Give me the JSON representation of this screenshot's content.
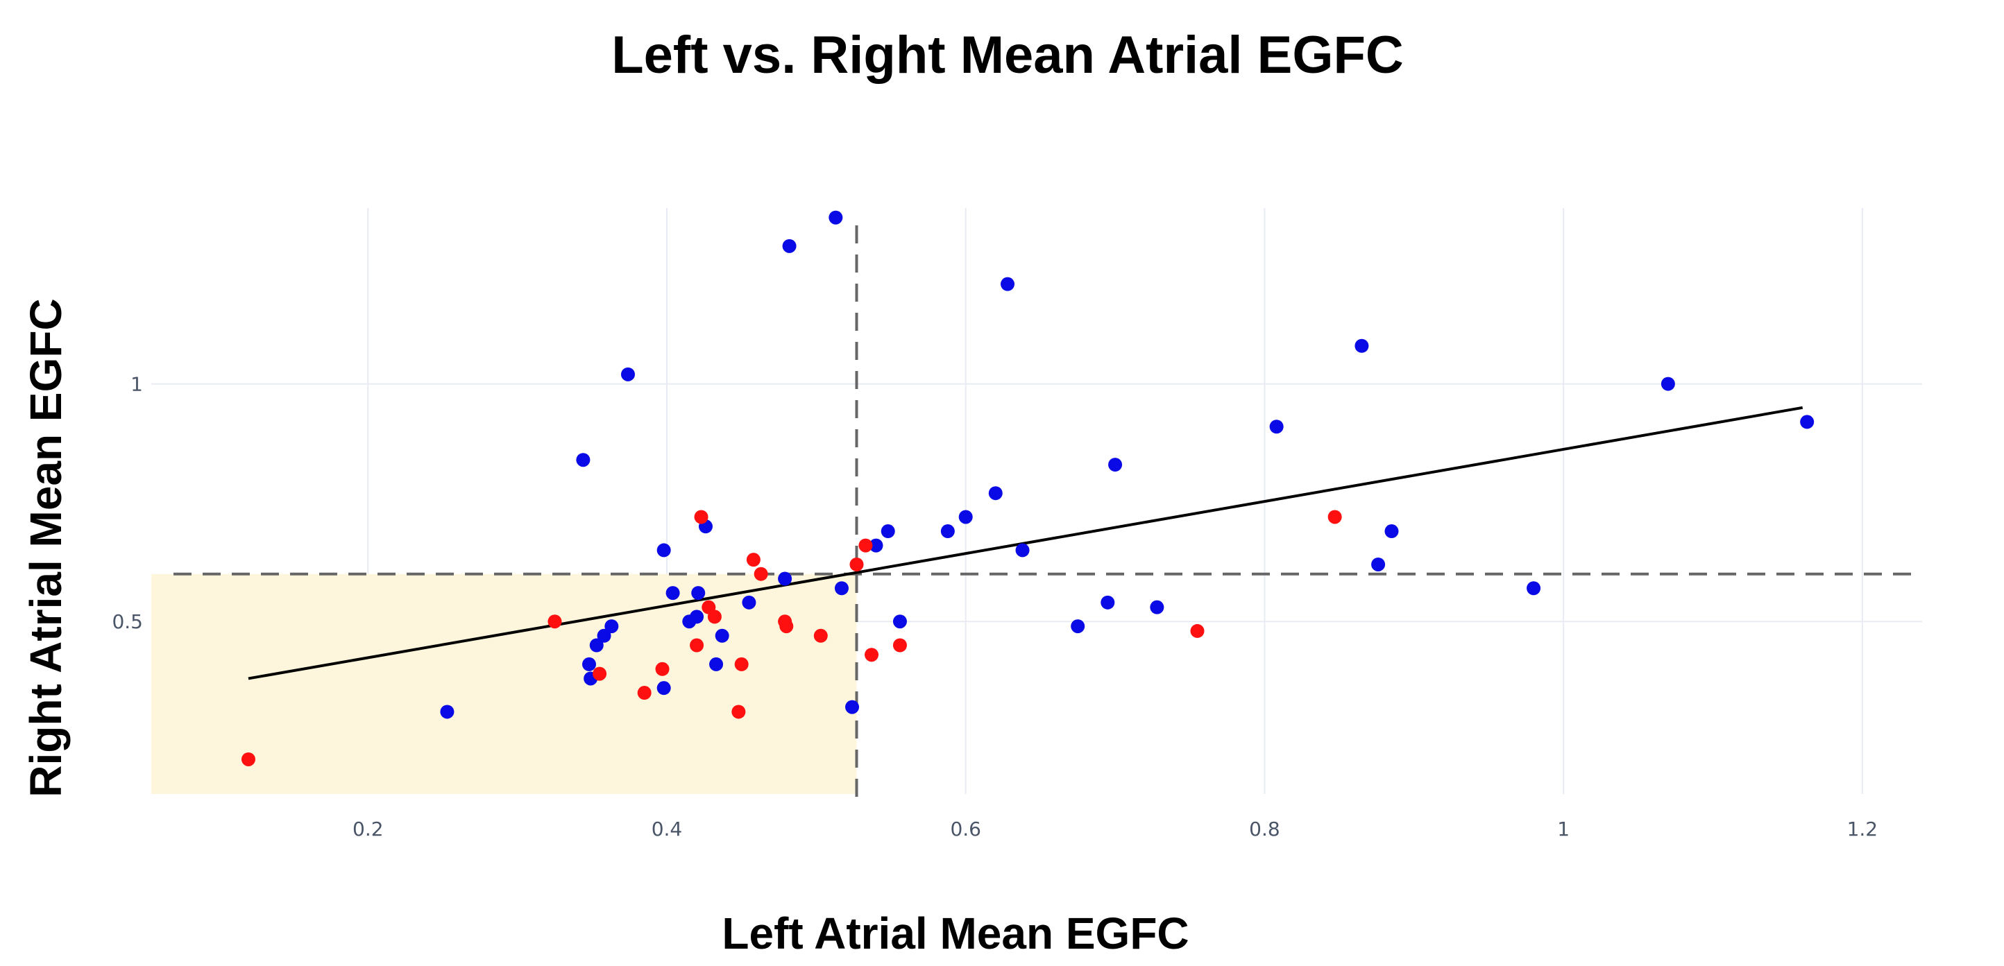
{
  "chart_data": {
    "type": "scatter",
    "title": "Left vs. Right Mean Atrial EGFC",
    "xlabel": "Left Atrial Mean EGFC",
    "ylabel": "Right Atrial Mean EGFC",
    "xlim": [
      0.055,
      1.24
    ],
    "ylim": [
      0.137,
      1.37
    ],
    "xticks": [
      0.2,
      0.4,
      0.6,
      0.8,
      1.0,
      1.2
    ],
    "xtick_labels": [
      "0.2",
      "0.4",
      "0.6",
      "0.8",
      "1",
      "1.2"
    ],
    "yticks": [
      0.5,
      1.0
    ],
    "ytick_labels": [
      "0.5",
      "1"
    ],
    "grid": true,
    "thresholds": {
      "x": 0.527,
      "y": 0.6
    },
    "shaded_region": {
      "x": [
        0.055,
        0.527
      ],
      "y": [
        0.137,
        0.6
      ],
      "color": "#fdf6dc"
    },
    "trend_line": {
      "x": [
        0.12,
        1.16
      ],
      "y": [
        0.38,
        0.95
      ],
      "color": "#000000"
    },
    "series": [
      {
        "name": "blue",
        "color": "#0a0ae6",
        "points": [
          [
            0.253,
            0.31
          ],
          [
            0.344,
            0.84
          ],
          [
            0.348,
            0.41
          ],
          [
            0.349,
            0.38
          ],
          [
            0.353,
            0.45
          ],
          [
            0.358,
            0.47
          ],
          [
            0.363,
            0.49
          ],
          [
            0.374,
            1.02
          ],
          [
            0.398,
            0.36
          ],
          [
            0.398,
            0.65
          ],
          [
            0.404,
            0.56
          ],
          [
            0.415,
            0.5
          ],
          [
            0.42,
            0.51
          ],
          [
            0.421,
            0.56
          ],
          [
            0.426,
            0.7
          ],
          [
            0.433,
            0.41
          ],
          [
            0.437,
            0.47
          ],
          [
            0.455,
            0.54
          ],
          [
            0.479,
            0.59
          ],
          [
            0.482,
            1.29
          ],
          [
            0.513,
            1.35
          ],
          [
            0.517,
            0.57
          ],
          [
            0.524,
            0.32
          ],
          [
            0.54,
            0.66
          ],
          [
            0.548,
            0.69
          ],
          [
            0.556,
            0.5
          ],
          [
            0.588,
            0.69
          ],
          [
            0.6,
            0.72
          ],
          [
            0.62,
            0.77
          ],
          [
            0.628,
            1.21
          ],
          [
            0.638,
            0.65
          ],
          [
            0.675,
            0.49
          ],
          [
            0.695,
            0.54
          ],
          [
            0.7,
            0.83
          ],
          [
            0.728,
            0.53
          ],
          [
            0.808,
            0.91
          ],
          [
            0.865,
            1.08
          ],
          [
            0.876,
            0.62
          ],
          [
            0.885,
            0.69
          ],
          [
            0.98,
            0.57
          ],
          [
            1.07,
            1.0
          ],
          [
            1.163,
            0.92
          ]
        ]
      },
      {
        "name": "red",
        "color": "#ff1010",
        "points": [
          [
            0.12,
            0.21
          ],
          [
            0.325,
            0.5
          ],
          [
            0.355,
            0.39
          ],
          [
            0.385,
            0.35
          ],
          [
            0.397,
            0.4
          ],
          [
            0.42,
            0.45
          ],
          [
            0.423,
            0.72
          ],
          [
            0.428,
            0.53
          ],
          [
            0.432,
            0.51
          ],
          [
            0.448,
            0.31
          ],
          [
            0.45,
            0.41
          ],
          [
            0.458,
            0.63
          ],
          [
            0.463,
            0.6
          ],
          [
            0.479,
            0.5
          ],
          [
            0.48,
            0.49
          ],
          [
            0.503,
            0.47
          ],
          [
            0.527,
            0.62
          ],
          [
            0.533,
            0.66
          ],
          [
            0.537,
            0.43
          ],
          [
            0.556,
            0.45
          ],
          [
            0.755,
            0.48
          ],
          [
            0.847,
            0.72
          ]
        ]
      }
    ]
  }
}
